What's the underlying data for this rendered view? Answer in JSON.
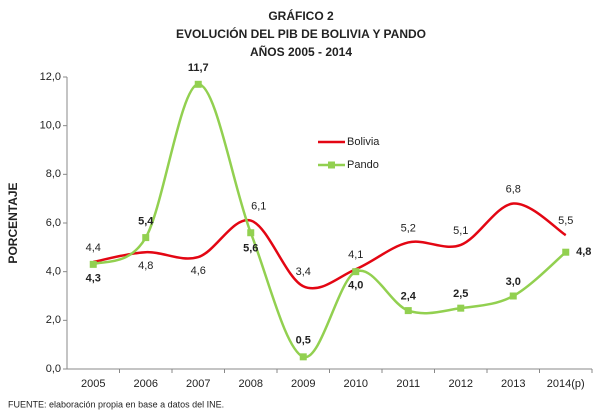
{
  "chart_data": {
    "type": "line",
    "title": [
      "GRÁFICO 2",
      "EVOLUCIÓN DEL PIB DE BOLIVIA Y PANDO",
      "AÑOS 2005 - 2014"
    ],
    "y_label": "PORCENTAJE",
    "source": "FUENTE: elaboración propia en base a datos del INE.",
    "categories": [
      "2005",
      "2006",
      "2007",
      "2008",
      "2009",
      "2010",
      "2011",
      "2012",
      "2013",
      "2014(p)"
    ],
    "series": [
      {
        "name": "Bolivia",
        "color": "#e30613",
        "marker": false,
        "values": [
          4.4,
          4.8,
          4.6,
          6.1,
          3.4,
          4.1,
          5.2,
          5.1,
          6.8,
          5.5
        ],
        "value_labels": [
          "4,4",
          "4,8",
          "4,6",
          "6,1",
          "3,4",
          "4,1",
          "5,2",
          "5,1",
          "6,8",
          "5,5"
        ]
      },
      {
        "name": "Pando",
        "color": "#92d050",
        "marker": true,
        "values": [
          4.3,
          5.4,
          11.7,
          5.6,
          0.5,
          4.0,
          2.4,
          2.5,
          3.0,
          4.8
        ],
        "value_labels": [
          "4,3",
          "5,4",
          "11,7",
          "5,6",
          "0,5",
          "4,0",
          "2,4",
          "2,5",
          "3,0",
          "4,8"
        ]
      }
    ],
    "ylim": [
      0,
      12
    ],
    "yticks": [
      {
        "value": 0,
        "label": "0,0"
      },
      {
        "value": 2,
        "label": "2,0"
      },
      {
        "value": 4,
        "label": "4,0"
      },
      {
        "value": 6,
        "label": "6,0"
      },
      {
        "value": 8,
        "label": "8,0"
      },
      {
        "value": 10,
        "label": "10,0"
      },
      {
        "value": 12,
        "label": "12,0"
      }
    ],
    "grid": false
  }
}
